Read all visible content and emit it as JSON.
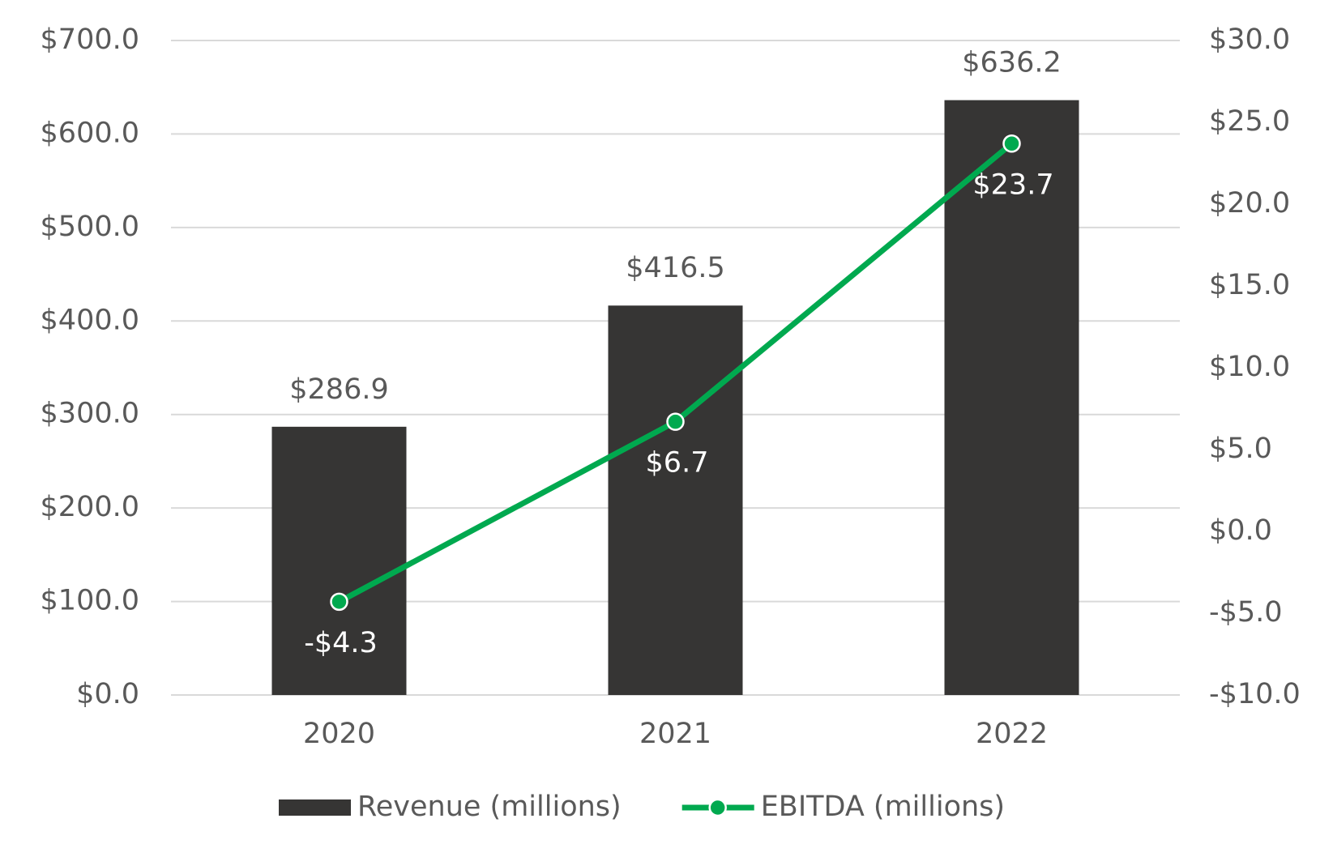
{
  "chart_data": {
    "type": "bar",
    "categories": [
      "2020",
      "2021",
      "2022"
    ],
    "series": [
      {
        "name": "Revenue (millions)",
        "type": "bar",
        "color": "#363534",
        "values": [
          286.9,
          416.5,
          636.2
        ],
        "value_labels": [
          "$286.9",
          "$416.5",
          "$636.2"
        ]
      },
      {
        "name": "EBITDA (millions)",
        "type": "line",
        "axis": "y2",
        "color": "#00a94f",
        "values": [
          -4.3,
          6.7,
          23.7
        ],
        "value_labels": [
          "-$4.3",
          "$6.7",
          "$23.7"
        ]
      }
    ],
    "ylim": [
      0,
      700
    ],
    "yticks": [
      {
        "value": 0,
        "label": "$0.0"
      },
      {
        "value": 100,
        "label": "$100.0"
      },
      {
        "value": 200,
        "label": "$200.0"
      },
      {
        "value": 300,
        "label": "$300.0"
      },
      {
        "value": 400,
        "label": "$400.0"
      },
      {
        "value": 500,
        "label": "$500.0"
      },
      {
        "value": 600,
        "label": "$600.0"
      },
      {
        "value": 700,
        "label": "$700.0"
      }
    ],
    "y2lim": [
      -10,
      30
    ],
    "y2ticks": [
      {
        "value": -10,
        "label": "-$10.0"
      },
      {
        "value": -5,
        "label": "-$5.0"
      },
      {
        "value": 0,
        "label": "$0.0"
      },
      {
        "value": 5,
        "label": "$5.0"
      },
      {
        "value": 10,
        "label": "$10.0"
      },
      {
        "value": 15,
        "label": "$15.0"
      },
      {
        "value": 20,
        "label": "$20.0"
      },
      {
        "value": 25,
        "label": "$25.0"
      },
      {
        "value": 30,
        "label": "$30.0"
      }
    ],
    "grid": true,
    "legend": "bottom"
  }
}
